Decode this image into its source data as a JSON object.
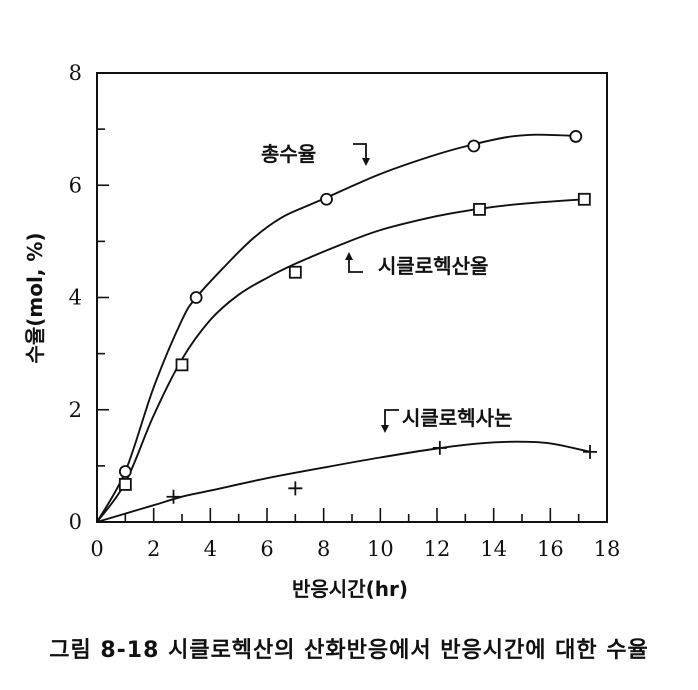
{
  "caption": "그림 8-18 시클로헥산의 산화반응에서 반응시간에 대한 수율",
  "chart_data": {
    "type": "line",
    "xlabel": "반응시간(hr)",
    "ylabel": "수율(mol, %)",
    "xlim": [
      0,
      18
    ],
    "ylim": [
      0,
      8
    ],
    "xticks": [
      0,
      2,
      4,
      6,
      8,
      10,
      12,
      14,
      16,
      18
    ],
    "yticks": [
      0,
      2,
      4,
      6,
      8
    ],
    "grid": false,
    "series": [
      {
        "name": "총수율",
        "marker": "circle",
        "points": [
          [
            1.0,
            0.9
          ],
          [
            3.5,
            4.0
          ],
          [
            8.1,
            5.75
          ],
          [
            13.3,
            6.7
          ],
          [
            16.9,
            6.87
          ]
        ],
        "curve": [
          [
            0,
            0
          ],
          [
            1.0,
            0.9
          ],
          [
            2.0,
            2.4
          ],
          [
            3.0,
            3.6
          ],
          [
            3.5,
            4.0
          ],
          [
            4.5,
            4.55
          ],
          [
            5.5,
            5.05
          ],
          [
            6.5,
            5.42
          ],
          [
            7.5,
            5.65
          ],
          [
            8.1,
            5.78
          ],
          [
            10,
            6.2
          ],
          [
            12,
            6.55
          ],
          [
            13.3,
            6.73
          ],
          [
            14.5,
            6.86
          ],
          [
            15.5,
            6.9
          ],
          [
            16.9,
            6.88
          ]
        ]
      },
      {
        "name": "시클로헥산올",
        "marker": "square",
        "points": [
          [
            1.0,
            0.67
          ],
          [
            3.0,
            2.8
          ],
          [
            7.0,
            4.45
          ],
          [
            13.5,
            5.57
          ],
          [
            17.2,
            5.75
          ]
        ],
        "curve": [
          [
            0,
            0
          ],
          [
            1.0,
            0.7
          ],
          [
            2.0,
            1.9
          ],
          [
            3.0,
            2.9
          ],
          [
            4.0,
            3.6
          ],
          [
            5.0,
            4.05
          ],
          [
            6.0,
            4.35
          ],
          [
            7.0,
            4.6
          ],
          [
            8.5,
            4.92
          ],
          [
            10,
            5.2
          ],
          [
            12,
            5.45
          ],
          [
            13.5,
            5.58
          ],
          [
            15,
            5.67
          ],
          [
            17.2,
            5.75
          ]
        ]
      },
      {
        "name": "시클로헥사논",
        "marker": "plus",
        "points": [
          [
            2.7,
            0.45
          ],
          [
            7.0,
            0.6
          ],
          [
            12.1,
            1.32
          ],
          [
            17.4,
            1.25
          ]
        ],
        "curve": [
          [
            0,
            0
          ],
          [
            1,
            0.15
          ],
          [
            2,
            0.3
          ],
          [
            3,
            0.45
          ],
          [
            4,
            0.56
          ],
          [
            6,
            0.78
          ],
          [
            8,
            0.97
          ],
          [
            10,
            1.15
          ],
          [
            12,
            1.31
          ],
          [
            13.5,
            1.4
          ],
          [
            14.8,
            1.43
          ],
          [
            16,
            1.4
          ],
          [
            17.4,
            1.25
          ]
        ]
      }
    ]
  }
}
